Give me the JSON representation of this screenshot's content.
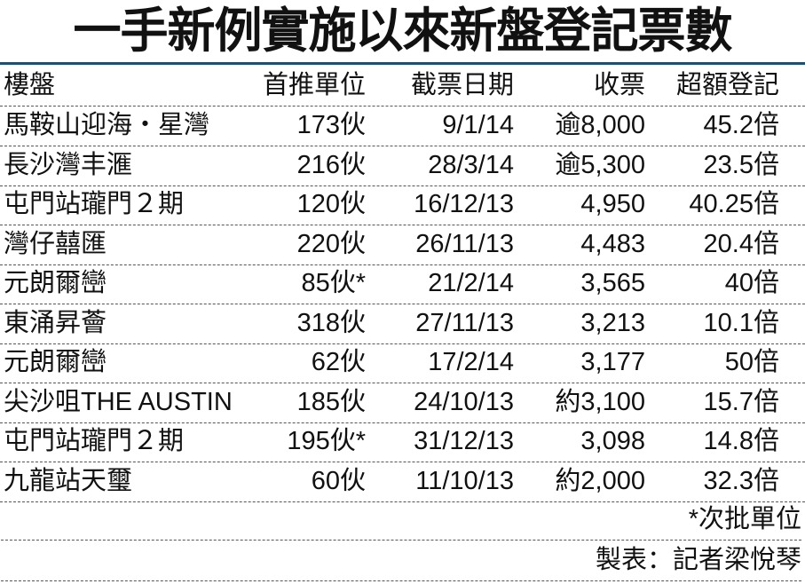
{
  "title": "一手新例實施以來新盤登記票數",
  "headers": [
    "樓盤",
    "首推單位",
    "截票日期",
    "收票",
    "超額登記"
  ],
  "rows": [
    [
      "馬鞍山迎海・星灣",
      "173伙",
      "9/1/14",
      "逾8,000",
      "45.2倍"
    ],
    [
      "長沙灣丰滙",
      "216伙",
      "28/3/14",
      "逾5,300",
      "23.5倍"
    ],
    [
      "屯門站瓏門２期",
      "120伙",
      "16/12/13",
      "4,950",
      "40.25倍"
    ],
    [
      "灣仔囍匯",
      "220伙",
      "26/11/13",
      "4,483",
      "20.4倍"
    ],
    [
      "元朗爾巒",
      "85伙*",
      "21/2/14",
      "3,565",
      "40倍"
    ],
    [
      "東涌昇薈",
      "318伙",
      "27/11/13",
      "3,213",
      "10.1倍"
    ],
    [
      "元朗爾巒",
      "62伙",
      "17/2/14",
      "3,177",
      "50倍"
    ],
    [
      "尖沙咀THE AUSTIN",
      "185伙",
      "24/10/13",
      "約3,100",
      "15.7倍"
    ],
    [
      "屯門站瓏門２期",
      "195伙*",
      "31/12/13",
      "3,098",
      "14.8倍"
    ],
    [
      "九龍站天璽",
      "60伙",
      "11/10/13",
      "約2,000",
      "32.3倍"
    ]
  ],
  "footnote": "*次批單位",
  "credit": "製表：記者梁悅琴",
  "colors": {
    "rule": "#1f4e6e"
  }
}
